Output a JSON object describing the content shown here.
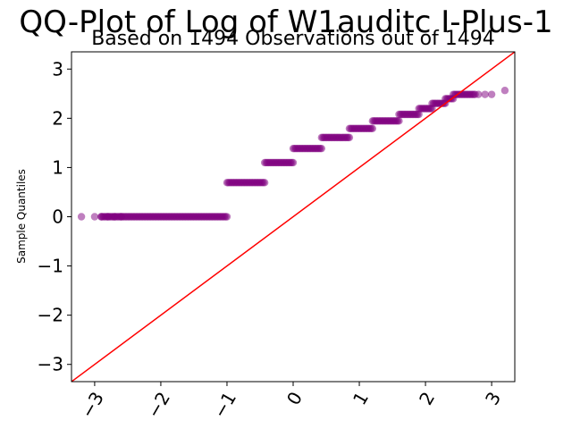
{
  "chart_data": {
    "type": "scatter",
    "title": "QQ-Plot of Log of W1auditc I-Plus-1",
    "subtitle": "Based on 1494 Observations out of 1494",
    "xlabel": "",
    "ylabel": "Sample Quantiles",
    "xlim": [
      -3.35,
      3.35
    ],
    "ylim": [
      -3.35,
      3.35
    ],
    "xticks": [
      -3,
      -2,
      -1,
      0,
      1,
      2,
      3
    ],
    "yticks": [
      -3,
      -2,
      -1,
      0,
      1,
      2,
      3
    ],
    "tick_labels_x": [
      "−3",
      "−2",
      "−1",
      "0",
      "1",
      "2",
      "3"
    ],
    "tick_labels_y": [
      "−3",
      "−2",
      "−1",
      "0",
      "1",
      "2",
      "3"
    ],
    "grid": false,
    "colors": {
      "points": "#800080",
      "reference_line": "#ff0000"
    },
    "reference_line": {
      "x": [
        -3.35,
        3.35
      ],
      "y": [
        -3.35,
        3.35
      ]
    },
    "series": [
      {
        "kind": "step_groups",
        "groups": [
          {
            "y": 0.0,
            "x_start": -2.9,
            "x_end": -1.0
          },
          {
            "y": 0.693,
            "x_start": -1.0,
            "x_end": -0.43
          },
          {
            "y": 1.099,
            "x_start": -0.43,
            "x_end": 0.0
          },
          {
            "y": 1.386,
            "x_start": 0.0,
            "x_end": 0.43
          },
          {
            "y": 1.609,
            "x_start": 0.43,
            "x_end": 0.85
          },
          {
            "y": 1.792,
            "x_start": 0.85,
            "x_end": 1.2
          },
          {
            "y": 1.946,
            "x_start": 1.2,
            "x_end": 1.6
          },
          {
            "y": 2.079,
            "x_start": 1.6,
            "x_end": 1.9
          },
          {
            "y": 2.197,
            "x_start": 1.9,
            "x_end": 2.1
          },
          {
            "y": 2.303,
            "x_start": 2.1,
            "x_end": 2.3
          },
          {
            "y": 2.398,
            "x_start": 2.3,
            "x_end": 2.42
          },
          {
            "y": 2.485,
            "x_start": 2.42,
            "x_end": 2.75
          }
        ],
        "sparse_points": [
          [
            -3.2,
            0.0
          ],
          [
            -3.0,
            0.0
          ],
          [
            -2.9,
            0.0
          ],
          [
            -2.8,
            0.0
          ],
          [
            -2.7,
            0.0
          ],
          [
            -2.6,
            0.0
          ],
          [
            2.8,
            2.485
          ],
          [
            2.9,
            2.485
          ],
          [
            3.0,
            2.485
          ],
          [
            3.2,
            2.565
          ]
        ]
      }
    ]
  }
}
